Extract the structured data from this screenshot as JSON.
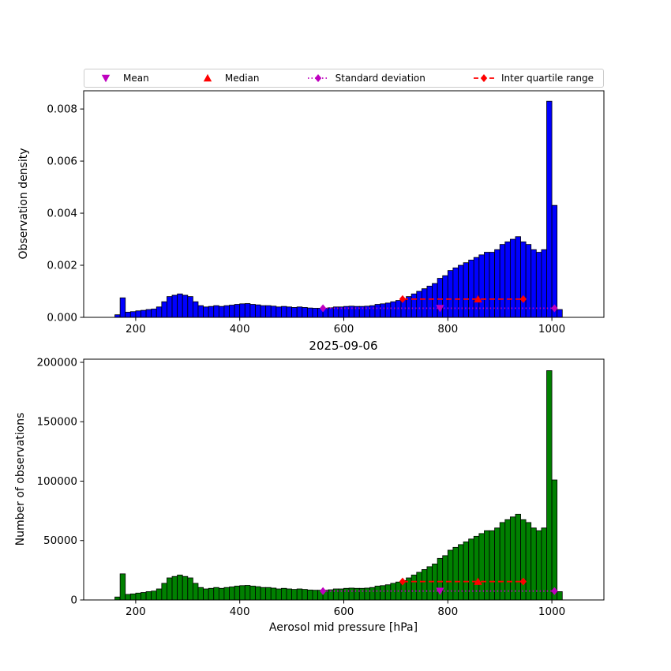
{
  "legend": {
    "items": [
      {
        "label": "Mean",
        "marker": "triangle-down",
        "color": "#bf00bf",
        "line": "none"
      },
      {
        "label": "Median",
        "marker": "triangle-up",
        "color": "#ff0000",
        "line": "none"
      },
      {
        "label": "Standard deviation",
        "marker": "diamond",
        "color": "#bf00bf",
        "line": "dotted"
      },
      {
        "label": "Inter quartile range",
        "marker": "diamond",
        "color": "#ff0000",
        "line": "dashed"
      }
    ]
  },
  "chart_data": [
    {
      "type": "bar",
      "title": "",
      "ylabel": "Observation density",
      "xlabel": "",
      "xlim": [
        100,
        1100
      ],
      "ylim": [
        0,
        0.0087
      ],
      "grid": false,
      "bar_color": "#0000ff",
      "bar_edge_color": "#000000",
      "bin_start": 160,
      "bin_width": 10,
      "values": [
        0.0001,
        0.00075,
        0.0002,
        0.00022,
        0.00025,
        0.00027,
        0.0003,
        0.00032,
        0.0004,
        0.0006,
        0.0008,
        0.00085,
        0.0009,
        0.00085,
        0.0008,
        0.0006,
        0.00045,
        0.0004,
        0.00042,
        0.00045,
        0.00042,
        0.00045,
        0.00047,
        0.0005,
        0.00052,
        0.00053,
        0.0005,
        0.00048,
        0.00045,
        0.00045,
        0.00043,
        0.0004,
        0.00042,
        0.0004,
        0.00038,
        0.0004,
        0.00038,
        0.00036,
        0.00035,
        0.00035,
        0.00035,
        0.00037,
        0.0004,
        0.0004,
        0.00042,
        0.00043,
        0.00042,
        0.00042,
        0.00043,
        0.00045,
        0.0005,
        0.00052,
        0.00055,
        0.0006,
        0.00065,
        0.0007,
        0.0008,
        0.0009,
        0.001,
        0.0011,
        0.0012,
        0.0013,
        0.0015,
        0.0016,
        0.0018,
        0.0019,
        0.002,
        0.0021,
        0.0022,
        0.0023,
        0.0024,
        0.0025,
        0.0025,
        0.0026,
        0.0028,
        0.0029,
        0.003,
        0.0031,
        0.0029,
        0.0028,
        0.0026,
        0.0025,
        0.0026,
        0.0083,
        0.0043,
        0.0003
      ],
      "xticks": {
        "values": [
          200,
          400,
          600,
          800,
          1000
        ],
        "labels": [
          "200",
          "400",
          "600",
          "800",
          "1000"
        ]
      },
      "yticks": {
        "values": [
          0,
          0.002,
          0.004,
          0.006,
          0.008
        ],
        "labels": [
          "0.000",
          "0.002",
          "0.004",
          "0.006",
          "0.008"
        ]
      },
      "markers": {
        "std": {
          "x1": 560,
          "x2": 1005,
          "y": 0.00035,
          "color": "#bf00bf"
        },
        "mean": {
          "x": 785,
          "y": 0.00035,
          "color": "#bf00bf"
        },
        "iqr": {
          "x1": 713,
          "x2": 945,
          "y": 0.0007,
          "color": "#ff0000"
        },
        "median": {
          "x": 858,
          "y": 0.0007,
          "color": "#ff0000"
        }
      }
    },
    {
      "type": "bar",
      "title": "2025-09-06",
      "ylabel": "Number of observations",
      "xlabel": "Aerosol mid pressure [hPa]",
      "xlim": [
        100,
        1100
      ],
      "ylim": [
        0,
        202650
      ],
      "grid": false,
      "bar_color": "#008000",
      "bar_edge_color": "#000000",
      "bin_start": 160,
      "bin_width": 10,
      "values": [
        2500,
        22000,
        4700,
        5100,
        5800,
        6300,
        7000,
        7500,
        9300,
        14000,
        18600,
        19800,
        21000,
        19800,
        18600,
        14000,
        10500,
        9300,
        9800,
        10500,
        9800,
        10500,
        11000,
        11700,
        12100,
        12300,
        11700,
        11200,
        10500,
        10500,
        10000,
        9300,
        9800,
        9300,
        8900,
        9300,
        8900,
        8400,
        8200,
        8200,
        8200,
        8600,
        9300,
        9300,
        9800,
        10000,
        9800,
        9800,
        10000,
        10500,
        11700,
        12100,
        12800,
        14000,
        15100,
        16300,
        18600,
        21000,
        23300,
        25600,
        28000,
        30300,
        35000,
        37300,
        41900,
        44300,
        46600,
        48900,
        51300,
        53600,
        55900,
        58300,
        58300,
        60600,
        65200,
        67600,
        69900,
        72200,
        67600,
        65200,
        60600,
        58300,
        60600,
        193000,
        101000,
        7000
      ],
      "xticks": {
        "values": [
          200,
          400,
          600,
          800,
          1000
        ],
        "labels": [
          "200",
          "400",
          "600",
          "800",
          "1000"
        ]
      },
      "yticks": {
        "values": [
          0,
          50000,
          100000,
          150000,
          200000
        ],
        "labels": [
          "0",
          "50000",
          "100000",
          "150000",
          "200000"
        ]
      },
      "markers": {
        "std": {
          "x1": 560,
          "x2": 1005,
          "y": 7500,
          "color": "#bf00bf"
        },
        "mean": {
          "x": 785,
          "y": 7500,
          "color": "#bf00bf"
        },
        "iqr": {
          "x1": 713,
          "x2": 945,
          "y": 15500,
          "color": "#ff0000"
        },
        "median": {
          "x": 858,
          "y": 15500,
          "color": "#ff0000"
        }
      }
    }
  ]
}
